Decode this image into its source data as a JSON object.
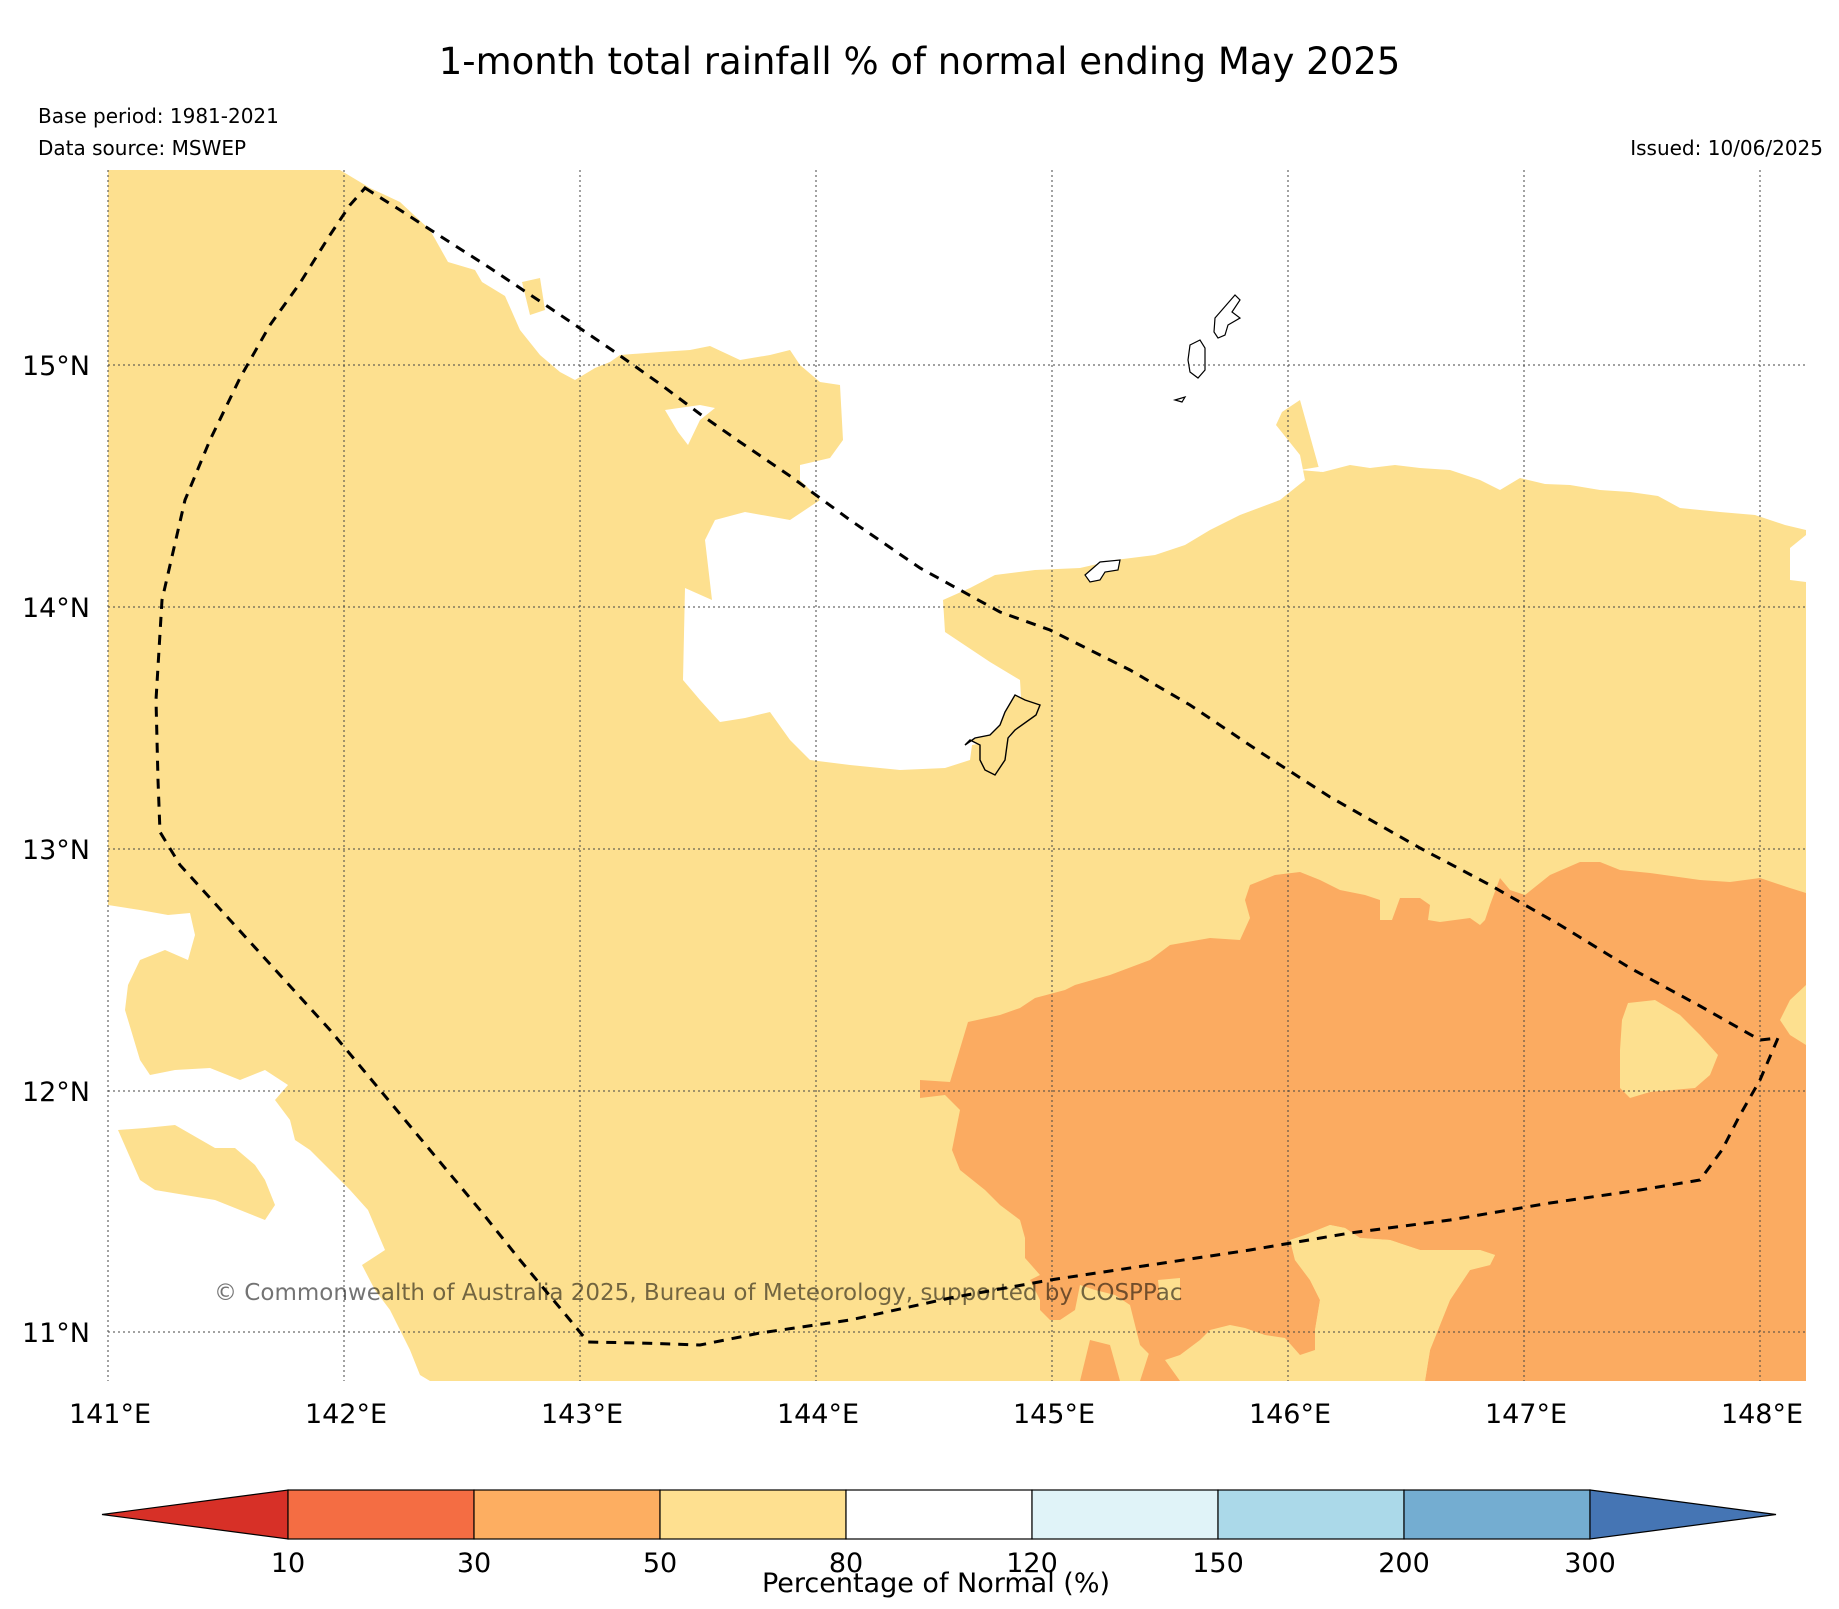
{
  "header": {
    "title": "1-month total rainfall % of normal ending May 2025",
    "base_period": "Base period: 1981-2021",
    "data_source": "Data source: MSWEP",
    "issued": "Issued: 10/06/2025"
  },
  "map": {
    "lon_ticks": [
      "141°E",
      "142°E",
      "143°E",
      "144°E",
      "145°E",
      "146°E",
      "147°E",
      "148°E"
    ],
    "lat_ticks": [
      "15°N",
      "14°N",
      "13°N",
      "12°N",
      "11°N"
    ],
    "copyright": "© Commonwealth of Australia 2025, Bureau of Meteorology, supported by COSPPac",
    "region_colors": {
      "below_50_80": "#fde08f",
      "below_30_50": "#fbab61",
      "normal": "#ffffff"
    }
  },
  "colorbar": {
    "label": "Percentage of Normal (%)",
    "ticks": [
      "10",
      "30",
      "50",
      "80",
      "120",
      "150",
      "200",
      "300"
    ],
    "colors": [
      "#d73027",
      "#f46d43",
      "#fdae61",
      "#fee090",
      "#ffffff",
      "#e0f3f8",
      "#abd9e9",
      "#74add1",
      "#4575b4"
    ]
  }
}
